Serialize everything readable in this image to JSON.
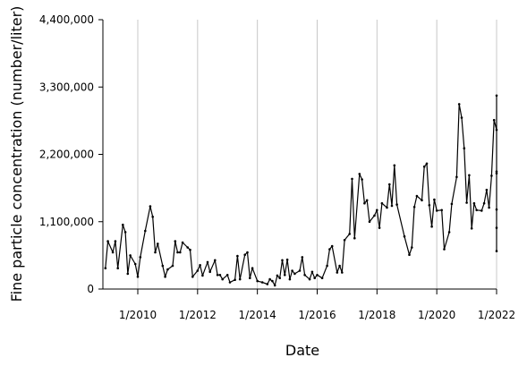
{
  "chart_data": {
    "type": "line",
    "xlabel": "Date",
    "ylabel": "Fine particle concentration (number/liter)",
    "ylim": [
      0,
      4400000
    ],
    "xlim": [
      "2008-11",
      "2022-01"
    ],
    "grid": {
      "vertical": true,
      "horizontal": false
    },
    "y_ticks": [
      {
        "value": 0,
        "label": "0"
      },
      {
        "value": 1100000,
        "label": "1,100,000"
      },
      {
        "value": 2200000,
        "label": "2,200,000"
      },
      {
        "value": 3300000,
        "label": "3,300,000"
      },
      {
        "value": 4400000,
        "label": "4,400,000"
      }
    ],
    "x_ticks": [
      {
        "value": "2010-01",
        "label": "1/2010"
      },
      {
        "value": "2012-01",
        "label": "1/2012"
      },
      {
        "value": "2014-01",
        "label": "1/2014"
      },
      {
        "value": "2016-01",
        "label": "1/2016"
      },
      {
        "value": "2018-01",
        "label": "1/2018"
      },
      {
        "value": "2020-01",
        "label": "1/2020"
      },
      {
        "value": "2022-01",
        "label": "1/2022"
      }
    ],
    "series": [
      {
        "color": "#000000",
        "points": [
          {
            "x": "2008-12",
            "y": 340000
          },
          {
            "x": "2009-01",
            "y": 780000
          },
          {
            "x": "2009-03",
            "y": 600000
          },
          {
            "x": "2009-04",
            "y": 780000
          },
          {
            "x": "2009-05",
            "y": 340000
          },
          {
            "x": "2009-07",
            "y": 1050000
          },
          {
            "x": "2009-08",
            "y": 930000
          },
          {
            "x": "2009-09",
            "y": 250000
          },
          {
            "x": "2009-10",
            "y": 550000
          },
          {
            "x": "2009-12",
            "y": 410000
          },
          {
            "x": "2010-01",
            "y": 200000
          },
          {
            "x": "2010-02",
            "y": 520000
          },
          {
            "x": "2010-04",
            "y": 950000
          },
          {
            "x": "2010-06",
            "y": 1350000
          },
          {
            "x": "2010-07",
            "y": 1180000
          },
          {
            "x": "2010-08",
            "y": 600000
          },
          {
            "x": "2010-09",
            "y": 740000
          },
          {
            "x": "2010-11",
            "y": 380000
          },
          {
            "x": "2010-12",
            "y": 200000
          },
          {
            "x": "2011-01",
            "y": 320000
          },
          {
            "x": "2011-03",
            "y": 380000
          },
          {
            "x": "2011-04",
            "y": 780000
          },
          {
            "x": "2011-05",
            "y": 600000
          },
          {
            "x": "2011-06",
            "y": 600000
          },
          {
            "x": "2011-07",
            "y": 760000
          },
          {
            "x": "2011-09",
            "y": 680000
          },
          {
            "x": "2011-10",
            "y": 640000
          },
          {
            "x": "2011-11",
            "y": 200000
          },
          {
            "x": "2012-01",
            "y": 300000
          },
          {
            "x": "2012-02",
            "y": 390000
          },
          {
            "x": "2012-03",
            "y": 220000
          },
          {
            "x": "2012-05",
            "y": 440000
          },
          {
            "x": "2012-06",
            "y": 280000
          },
          {
            "x": "2012-08",
            "y": 470000
          },
          {
            "x": "2012-09",
            "y": 230000
          },
          {
            "x": "2012-10",
            "y": 230000
          },
          {
            "x": "2012-11",
            "y": 160000
          },
          {
            "x": "2013-01",
            "y": 230000
          },
          {
            "x": "2013-02",
            "y": 110000
          },
          {
            "x": "2013-04",
            "y": 150000
          },
          {
            "x": "2013-05",
            "y": 540000
          },
          {
            "x": "2013-06",
            "y": 160000
          },
          {
            "x": "2013-08",
            "y": 560000
          },
          {
            "x": "2013-09",
            "y": 600000
          },
          {
            "x": "2013-10",
            "y": 180000
          },
          {
            "x": "2013-11",
            "y": 340000
          },
          {
            "x": "2014-01",
            "y": 130000
          },
          {
            "x": "2014-03",
            "y": 110000
          },
          {
            "x": "2014-05",
            "y": 80000
          },
          {
            "x": "2014-06",
            "y": 160000
          },
          {
            "x": "2014-07",
            "y": 130000
          },
          {
            "x": "2014-08",
            "y": 60000
          },
          {
            "x": "2014-09",
            "y": 220000
          },
          {
            "x": "2014-10",
            "y": 180000
          },
          {
            "x": "2014-11",
            "y": 470000
          },
          {
            "x": "2014-12",
            "y": 230000
          },
          {
            "x": "2015-01",
            "y": 480000
          },
          {
            "x": "2015-02",
            "y": 160000
          },
          {
            "x": "2015-03",
            "y": 300000
          },
          {
            "x": "2015-04",
            "y": 250000
          },
          {
            "x": "2015-06",
            "y": 300000
          },
          {
            "x": "2015-07",
            "y": 520000
          },
          {
            "x": "2015-08",
            "y": 230000
          },
          {
            "x": "2015-10",
            "y": 160000
          },
          {
            "x": "2015-11",
            "y": 280000
          },
          {
            "x": "2015-12",
            "y": 180000
          },
          {
            "x": "2016-01",
            "y": 230000
          },
          {
            "x": "2016-03",
            "y": 180000
          },
          {
            "x": "2016-05",
            "y": 380000
          },
          {
            "x": "2016-06",
            "y": 650000
          },
          {
            "x": "2016-07",
            "y": 700000
          },
          {
            "x": "2016-09",
            "y": 270000
          },
          {
            "x": "2016-10",
            "y": 380000
          },
          {
            "x": "2016-11",
            "y": 270000
          },
          {
            "x": "2016-12",
            "y": 800000
          },
          {
            "x": "2017-02",
            "y": 900000
          },
          {
            "x": "2017-03",
            "y": 1800000
          },
          {
            "x": "2017-04",
            "y": 830000
          },
          {
            "x": "2017-06",
            "y": 1880000
          },
          {
            "x": "2017-07",
            "y": 1790000
          },
          {
            "x": "2017-08",
            "y": 1400000
          },
          {
            "x": "2017-09",
            "y": 1450000
          },
          {
            "x": "2017-10",
            "y": 1100000
          },
          {
            "x": "2017-12",
            "y": 1200000
          },
          {
            "x": "2018-01",
            "y": 1290000
          },
          {
            "x": "2018-02",
            "y": 1000000
          },
          {
            "x": "2018-03",
            "y": 1400000
          },
          {
            "x": "2018-05",
            "y": 1330000
          },
          {
            "x": "2018-06",
            "y": 1710000
          },
          {
            "x": "2018-07",
            "y": 1360000
          },
          {
            "x": "2018-08",
            "y": 2020000
          },
          {
            "x": "2018-09",
            "y": 1380000
          },
          {
            "x": "2018-12",
            "y": 860000
          },
          {
            "x": "2019-02",
            "y": 560000
          },
          {
            "x": "2019-03",
            "y": 680000
          },
          {
            "x": "2019-04",
            "y": 1340000
          },
          {
            "x": "2019-05",
            "y": 1520000
          },
          {
            "x": "2019-07",
            "y": 1450000
          },
          {
            "x": "2019-08",
            "y": 2000000
          },
          {
            "x": "2019-09",
            "y": 2050000
          },
          {
            "x": "2019-10",
            "y": 1370000
          },
          {
            "x": "2019-11",
            "y": 1020000
          },
          {
            "x": "2019-12",
            "y": 1460000
          },
          {
            "x": "2020-01",
            "y": 1280000
          },
          {
            "x": "2020-03",
            "y": 1290000
          },
          {
            "x": "2020-04",
            "y": 650000
          },
          {
            "x": "2020-06",
            "y": 930000
          },
          {
            "x": "2020-07",
            "y": 1390000
          },
          {
            "x": "2020-09",
            "y": 1830000
          },
          {
            "x": "2020-10",
            "y": 3020000
          },
          {
            "x": "2020-11",
            "y": 2800000
          },
          {
            "x": "2020-12",
            "y": 2300000
          },
          {
            "x": "2021-01",
            "y": 1410000
          },
          {
            "x": "2021-02",
            "y": 1860000
          },
          {
            "x": "2021-03",
            "y": 990000
          },
          {
            "x": "2021-04",
            "y": 1400000
          },
          {
            "x": "2021-05",
            "y": 1290000
          },
          {
            "x": "2021-07",
            "y": 1280000
          },
          {
            "x": "2021-08",
            "y": 1400000
          },
          {
            "x": "2021-09",
            "y": 1620000
          },
          {
            "x": "2021-10",
            "y": 1330000
          },
          {
            "x": "2021-11",
            "y": 1850000
          },
          {
            "x": "2021-12",
            "y": 2760000
          },
          {
            "x": "2022-01",
            "y": 2600000
          },
          {
            "x": "2022-02",
            "y": 3160000
          },
          {
            "x": "2022-03",
            "y": 1920000
          },
          {
            "x": "2022-04",
            "y": 1890000
          },
          {
            "x": "2022-05",
            "y": 1300000
          },
          {
            "x": "2022-07",
            "y": 1000000
          },
          {
            "x": "2022-08",
            "y": 620000
          }
        ]
      }
    ]
  }
}
